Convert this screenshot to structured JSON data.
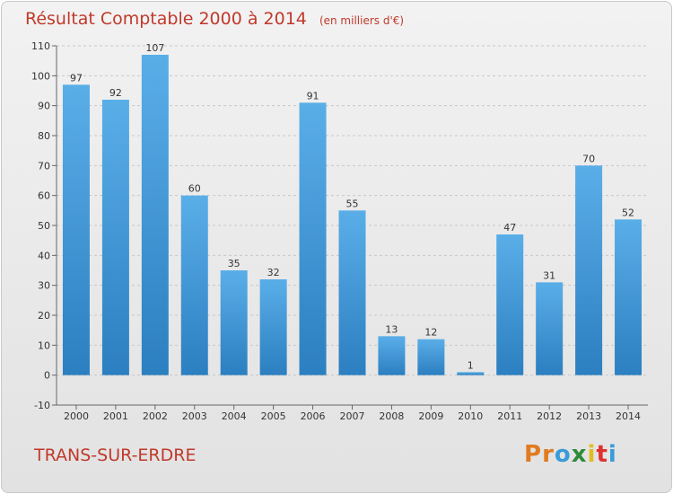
{
  "chart_data": {
    "type": "bar",
    "title": "Résultat Comptable 2000 à 2014",
    "subtitle": "(en milliers d'€)",
    "categories": [
      "2000",
      "2001",
      "2002",
      "2003",
      "2004",
      "2005",
      "2006",
      "2007",
      "2008",
      "2009",
      "2010",
      "2011",
      "2012",
      "2013",
      "2014"
    ],
    "values": [
      97,
      92,
      107,
      60,
      35,
      32,
      91,
      55,
      13,
      12,
      1,
      47,
      31,
      70,
      52
    ],
    "ylim": [
      -10,
      110
    ],
    "yticks": [
      -10,
      0,
      10,
      20,
      30,
      40,
      50,
      60,
      70,
      80,
      90,
      100,
      110
    ],
    "grid": true,
    "bar_color": "#4a9fe0",
    "title_color": "#c0392b"
  },
  "footer": {
    "place_name": "TRANS-SUR-ERDRE",
    "logo": [
      "P",
      "r",
      "o",
      "x",
      "i",
      "t",
      "i"
    ],
    "logo_colors": [
      "#e07b1f",
      "#e07b1f",
      "#3a9bd9",
      "#2e8b3a",
      "#e0be1f",
      "#e03030",
      "#3a9bd9"
    ]
  }
}
